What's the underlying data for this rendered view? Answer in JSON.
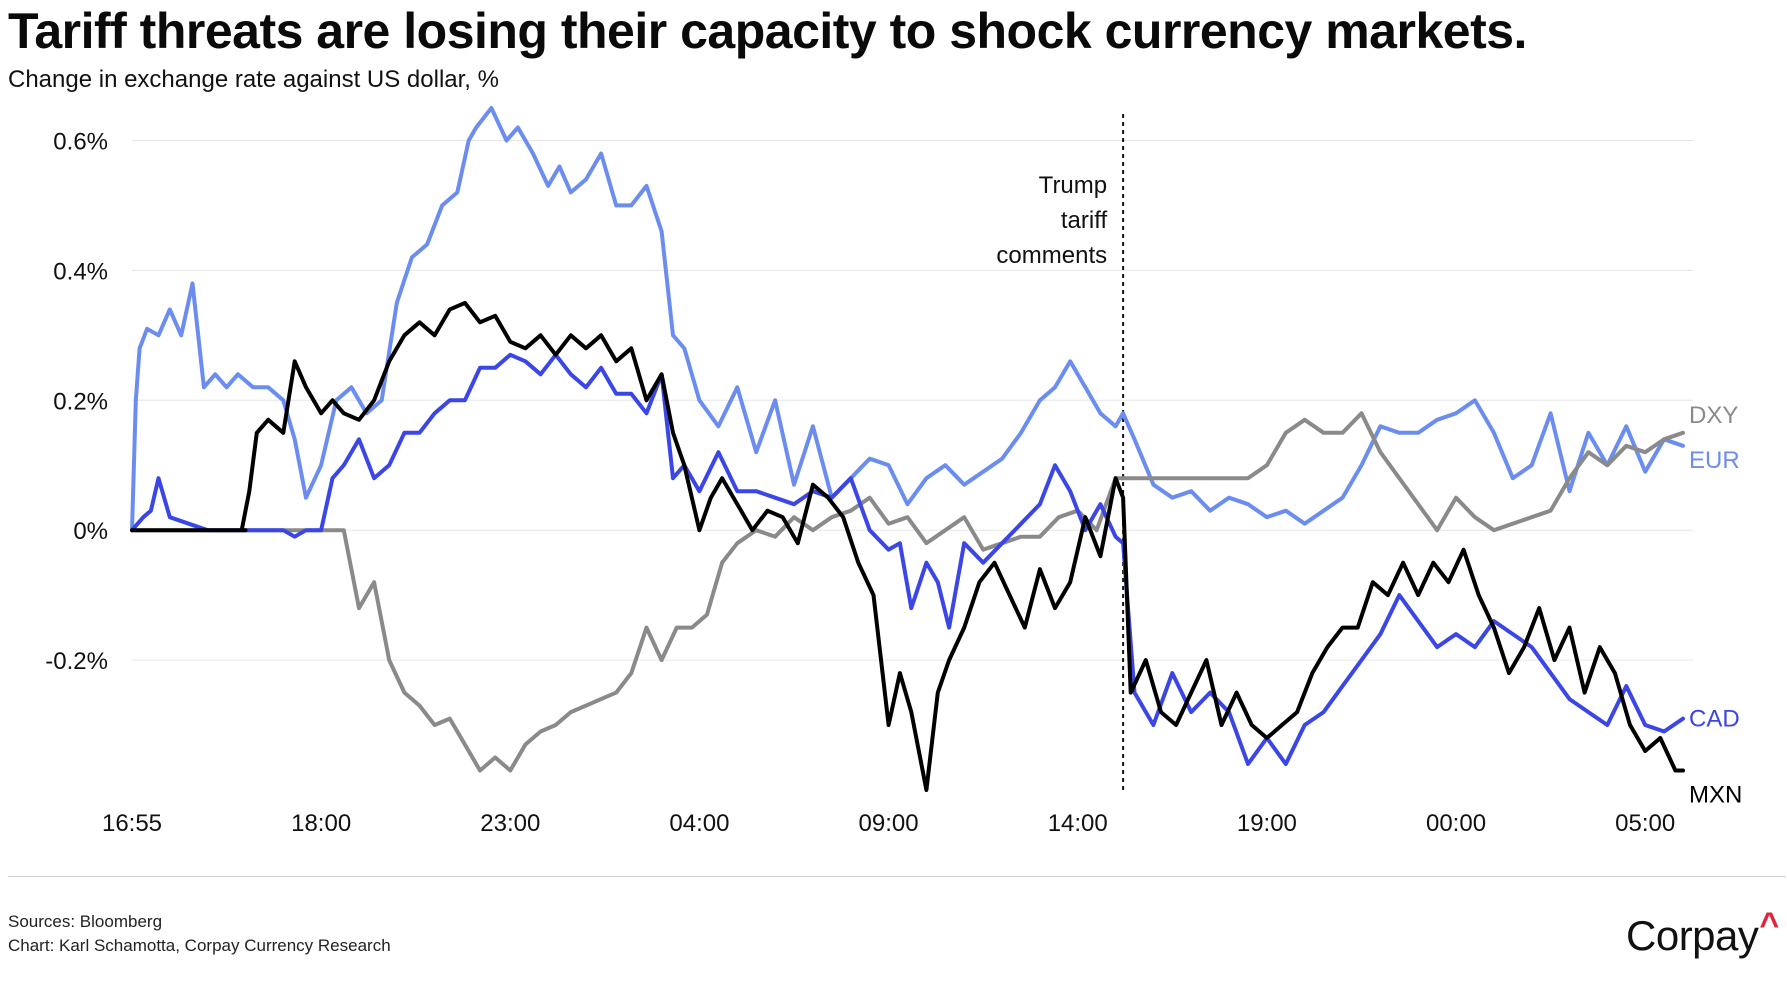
{
  "title": "Tariff threats are losing their capacity to shock currency markets.",
  "subtitle": "Change in exchange rate against US dollar, %",
  "footer": {
    "source": "Sources: Bloomberg",
    "credit": "Chart: Karl Schamotta, Corpay Currency Research",
    "logo_text": "Corpay",
    "logo_mark": "^"
  },
  "colors": {
    "DXY": "#8a8a8a",
    "EUR": "#6b8df0",
    "CAD": "#3a46e6",
    "MXN": "#000000",
    "logo_accent": "#e0243a"
  },
  "chart_data": {
    "type": "line",
    "title": "Tariff threats are losing their capacity to shock currency markets.",
    "ylabel": "Change in exchange rate against US dollar, %",
    "x_range": [
      0,
      41
    ],
    "ylim": [
      -0.4,
      0.65
    ],
    "y_ticks": [
      {
        "value": 0.6,
        "label": "0.6%"
      },
      {
        "value": 0.4,
        "label": "0.4%"
      },
      {
        "value": 0.2,
        "label": "0.2%"
      },
      {
        "value": 0.0,
        "label": "0%"
      },
      {
        "value": -0.2,
        "label": "-0.2%"
      }
    ],
    "x_ticks": [
      {
        "value": 0,
        "label": "16:55"
      },
      {
        "value": 5,
        "label": "18:00"
      },
      {
        "value": 10,
        "label": "23:00"
      },
      {
        "value": 15,
        "label": "04:00"
      },
      {
        "value": 20,
        "label": "09:00"
      },
      {
        "value": 25,
        "label": "14:00"
      },
      {
        "value": 30,
        "label": "19:00"
      },
      {
        "value": 35,
        "label": "00:00"
      },
      {
        "value": 40,
        "label": "05:00"
      }
    ],
    "annotation": {
      "x": 26.2,
      "lines": [
        "Trump",
        "tariff",
        "comments"
      ]
    },
    "series": [
      {
        "name": "EUR",
        "x": [
          0,
          0.1,
          0.2,
          0.4,
          0.7,
          1.0,
          1.3,
          1.6,
          1.9,
          2.2,
          2.5,
          2.8,
          3.2,
          3.6,
          4.0,
          4.3,
          4.6,
          5.0,
          5.4,
          5.8,
          6.2,
          6.6,
          7.0,
          7.4,
          7.8,
          8.2,
          8.6,
          8.9,
          9.1,
          9.5,
          9.9,
          10.2,
          10.6,
          11.0,
          11.3,
          11.6,
          12.0,
          12.4,
          12.8,
          13.2,
          13.6,
          14.0,
          14.3,
          14.6,
          15.0,
          15.5,
          16.0,
          16.5,
          17.0,
          17.5,
          18.0,
          18.5,
          19.0,
          19.5,
          20.0,
          20.5,
          21.0,
          21.5,
          22.0,
          22.5,
          23.0,
          23.5,
          24.0,
          24.4,
          24.8,
          25.2,
          25.6,
          26.0,
          26.2,
          26.5,
          27.0,
          27.5,
          28.0,
          28.5,
          29.0,
          29.5,
          30.0,
          30.5,
          31.0,
          31.5,
          32.0,
          32.5,
          33.0,
          33.5,
          34.0,
          34.5,
          35.0,
          35.5,
          36.0,
          36.5,
          37.0,
          37.5,
          38.0,
          38.5,
          39.0,
          39.5,
          40.0,
          40.5,
          41.0
        ],
        "y": [
          0.0,
          0.2,
          0.28,
          0.31,
          0.3,
          0.34,
          0.3,
          0.38,
          0.22,
          0.24,
          0.22,
          0.24,
          0.22,
          0.22,
          0.2,
          0.14,
          0.05,
          0.1,
          0.2,
          0.22,
          0.18,
          0.2,
          0.35,
          0.42,
          0.44,
          0.5,
          0.52,
          0.6,
          0.62,
          0.65,
          0.6,
          0.62,
          0.58,
          0.53,
          0.56,
          0.52,
          0.54,
          0.58,
          0.5,
          0.5,
          0.53,
          0.46,
          0.3,
          0.28,
          0.2,
          0.16,
          0.22,
          0.12,
          0.2,
          0.07,
          0.16,
          0.05,
          0.08,
          0.11,
          0.1,
          0.04,
          0.08,
          0.1,
          0.07,
          0.09,
          0.11,
          0.15,
          0.2,
          0.22,
          0.26,
          0.22,
          0.18,
          0.16,
          0.18,
          0.14,
          0.07,
          0.05,
          0.06,
          0.03,
          0.05,
          0.04,
          0.02,
          0.03,
          0.01,
          0.03,
          0.05,
          0.1,
          0.16,
          0.15,
          0.15,
          0.17,
          0.18,
          0.2,
          0.15,
          0.08,
          0.1,
          0.18,
          0.06,
          0.15,
          0.1,
          0.16,
          0.09,
          0.14,
          0.13
        ]
      },
      {
        "name": "DXY",
        "x": [
          0,
          1,
          2,
          3,
          4,
          5,
          5.3,
          5.6,
          6.0,
          6.4,
          6.8,
          7.2,
          7.6,
          8.0,
          8.4,
          8.8,
          9.2,
          9.6,
          10.0,
          10.4,
          10.8,
          11.2,
          11.6,
          12.0,
          12.4,
          12.8,
          13.2,
          13.6,
          14.0,
          14.4,
          14.8,
          15.2,
          15.6,
          16.0,
          16.5,
          17.0,
          17.5,
          18.0,
          18.5,
          19.0,
          19.5,
          20.0,
          20.5,
          21.0,
          21.5,
          22.0,
          22.5,
          23.0,
          23.5,
          24.0,
          24.5,
          25.0,
          25.5,
          26.0,
          26.2,
          26.5,
          27.0,
          27.5,
          28.0,
          28.5,
          29.0,
          29.5,
          30.0,
          30.5,
          31.0,
          31.5,
          32.0,
          32.5,
          33.0,
          33.5,
          34.0,
          34.5,
          35.0,
          35.5,
          36.0,
          36.5,
          37.0,
          37.5,
          38.0,
          38.5,
          39.0,
          39.5,
          40.0,
          40.5,
          41.0
        ],
        "y": [
          0,
          0,
          0,
          0,
          0,
          0,
          0,
          0,
          -0.12,
          -0.08,
          -0.2,
          -0.25,
          -0.27,
          -0.3,
          -0.29,
          -0.33,
          -0.37,
          -0.35,
          -0.37,
          -0.33,
          -0.31,
          -0.3,
          -0.28,
          -0.27,
          -0.26,
          -0.25,
          -0.22,
          -0.15,
          -0.2,
          -0.15,
          -0.15,
          -0.13,
          -0.05,
          -0.02,
          0.0,
          -0.01,
          0.02,
          0.0,
          0.02,
          0.03,
          0.05,
          0.01,
          0.02,
          -0.02,
          0.0,
          0.02,
          -0.03,
          -0.02,
          -0.01,
          -0.01,
          0.02,
          0.03,
          0.0,
          0.08,
          0.08,
          0.08,
          0.08,
          0.08,
          0.08,
          0.08,
          0.08,
          0.08,
          0.1,
          0.15,
          0.17,
          0.15,
          0.15,
          0.18,
          0.12,
          0.08,
          0.04,
          0.0,
          0.05,
          0.02,
          0.0,
          0.01,
          0.02,
          0.03,
          0.08,
          0.12,
          0.1,
          0.13,
          0.12,
          0.14,
          0.15
        ]
      },
      {
        "name": "CAD",
        "x": [
          0,
          0.3,
          0.5,
          0.7,
          1.0,
          1.5,
          2,
          2.5,
          3,
          3.5,
          4.0,
          4.3,
          4.6,
          5.0,
          5.3,
          5.6,
          6.0,
          6.4,
          6.8,
          7.2,
          7.6,
          8.0,
          8.4,
          8.8,
          9.2,
          9.6,
          10.0,
          10.4,
          10.8,
          11.2,
          11.6,
          12.0,
          12.4,
          12.8,
          13.2,
          13.6,
          14.0,
          14.3,
          14.6,
          15.0,
          15.5,
          16.0,
          16.5,
          17.0,
          17.5,
          18.0,
          18.5,
          19.0,
          19.5,
          20.0,
          20.3,
          20.6,
          21.0,
          21.3,
          21.6,
          22.0,
          22.5,
          23.0,
          23.5,
          24.0,
          24.4,
          24.8,
          25.2,
          25.6,
          26.0,
          26.2,
          26.5,
          27.0,
          27.5,
          28.0,
          28.5,
          29.0,
          29.5,
          30.0,
          30.5,
          31.0,
          31.5,
          32.0,
          32.5,
          33.0,
          33.5,
          34.0,
          34.5,
          35.0,
          35.5,
          36.0,
          36.5,
          37.0,
          37.5,
          38.0,
          38.5,
          39.0,
          39.5,
          40.0,
          40.5,
          41.0
        ],
        "y": [
          0,
          0.02,
          0.03,
          0.08,
          0.02,
          0.01,
          0.0,
          0.0,
          0.0,
          0.0,
          0.0,
          -0.01,
          0.0,
          0.0,
          0.08,
          0.1,
          0.14,
          0.08,
          0.1,
          0.15,
          0.15,
          0.18,
          0.2,
          0.2,
          0.25,
          0.25,
          0.27,
          0.26,
          0.24,
          0.27,
          0.24,
          0.22,
          0.25,
          0.21,
          0.21,
          0.18,
          0.24,
          0.08,
          0.1,
          0.06,
          0.12,
          0.06,
          0.06,
          0.05,
          0.04,
          0.06,
          0.05,
          0.08,
          0.0,
          -0.03,
          -0.02,
          -0.12,
          -0.05,
          -0.08,
          -0.15,
          -0.02,
          -0.05,
          -0.02,
          0.01,
          0.04,
          0.1,
          0.06,
          0.0,
          0.04,
          -0.01,
          -0.02,
          -0.25,
          -0.3,
          -0.22,
          -0.28,
          -0.25,
          -0.28,
          -0.36,
          -0.32,
          -0.36,
          -0.3,
          -0.28,
          -0.24,
          -0.2,
          -0.16,
          -0.1,
          -0.14,
          -0.18,
          -0.16,
          -0.18,
          -0.14,
          -0.16,
          -0.18,
          -0.22,
          -0.26,
          -0.28,
          -0.3,
          -0.24,
          -0.3,
          -0.31,
          -0.29
        ]
      },
      {
        "name": "MXN",
        "x": [
          0,
          1,
          2,
          3,
          2.9,
          3.1,
          3.3,
          3.6,
          4.0,
          4.3,
          4.6,
          5.0,
          5.3,
          5.6,
          6.0,
          6.4,
          6.8,
          7.2,
          7.6,
          8.0,
          8.4,
          8.8,
          9.2,
          9.6,
          10.0,
          10.4,
          10.8,
          11.2,
          11.6,
          12.0,
          12.4,
          12.8,
          13.2,
          13.6,
          14.0,
          14.3,
          14.6,
          15.0,
          15.3,
          15.6,
          16.0,
          16.4,
          16.8,
          17.2,
          17.6,
          18.0,
          18.4,
          18.8,
          19.2,
          19.6,
          20.0,
          20.3,
          20.6,
          21.0,
          21.3,
          21.6,
          22.0,
          22.4,
          22.8,
          23.2,
          23.6,
          24.0,
          24.4,
          24.8,
          25.2,
          25.6,
          26.0,
          26.2,
          26.4,
          26.8,
          27.2,
          27.6,
          28.0,
          28.4,
          28.8,
          29.2,
          29.6,
          30.0,
          30.4,
          30.8,
          31.2,
          31.6,
          32.0,
          32.4,
          32.8,
          33.2,
          33.6,
          34.0,
          34.4,
          34.8,
          35.2,
          35.6,
          36.0,
          36.4,
          36.8,
          37.2,
          37.6,
          38.0,
          38.4,
          38.8,
          39.2,
          39.6,
          40.0,
          40.4,
          40.8,
          41.0
        ],
        "y": [
          0,
          0,
          0,
          0,
          0,
          0.06,
          0.15,
          0.17,
          0.15,
          0.26,
          0.22,
          0.18,
          0.2,
          0.18,
          0.17,
          0.2,
          0.26,
          0.3,
          0.32,
          0.3,
          0.34,
          0.35,
          0.32,
          0.33,
          0.29,
          0.28,
          0.3,
          0.27,
          0.3,
          0.28,
          0.3,
          0.26,
          0.28,
          0.2,
          0.24,
          0.15,
          0.1,
          0.0,
          0.05,
          0.08,
          0.04,
          0.0,
          0.03,
          0.02,
          -0.02,
          0.07,
          0.05,
          0.02,
          -0.05,
          -0.1,
          -0.3,
          -0.22,
          -0.28,
          -0.4,
          -0.25,
          -0.2,
          -0.15,
          -0.08,
          -0.05,
          -0.1,
          -0.15,
          -0.06,
          -0.12,
          -0.08,
          0.02,
          -0.04,
          0.08,
          0.05,
          -0.25,
          -0.2,
          -0.28,
          -0.3,
          -0.25,
          -0.2,
          -0.3,
          -0.25,
          -0.3,
          -0.32,
          -0.3,
          -0.28,
          -0.22,
          -0.18,
          -0.15,
          -0.15,
          -0.08,
          -0.1,
          -0.05,
          -0.1,
          -0.05,
          -0.08,
          -0.03,
          -0.1,
          -0.15,
          -0.22,
          -0.18,
          -0.12,
          -0.2,
          -0.15,
          -0.25,
          -0.18,
          -0.22,
          -0.3,
          -0.34,
          -0.32,
          -0.37,
          -0.37
        ]
      }
    ],
    "end_labels": [
      {
        "name": "DXY",
        "text": "DXY"
      },
      {
        "name": "EUR",
        "text": "EUR"
      },
      {
        "name": "CAD",
        "text": "CAD"
      },
      {
        "name": "MXN",
        "text": "MXN"
      }
    ]
  }
}
